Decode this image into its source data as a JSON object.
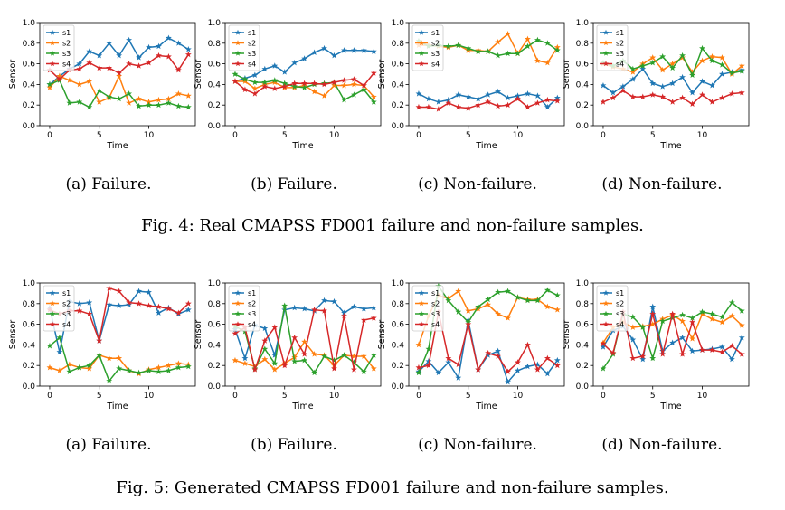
{
  "colors": {
    "s1": "#1f77b4",
    "s2": "#ff7f0e",
    "s3": "#2ca02c",
    "s4": "#d62728"
  },
  "figures": [
    {
      "caption": "Fig. 4: Real CMAPSS FD001 failure and non-failure samples."
    },
    {
      "caption": "Fig. 5: Generated CMAPSS FD001 failure and non-failure samples."
    }
  ],
  "chart_data": [
    {
      "type": "line",
      "figure": 0,
      "panel": 0,
      "caption": "(a) Failure.",
      "xlabel": "Time",
      "ylabel": "Sensor",
      "xlim": [
        -1,
        14.7
      ],
      "ylim": [
        0,
        1.0
      ],
      "xticks": [
        0,
        5,
        10
      ],
      "yticks": [
        0.0,
        0.2,
        0.4,
        0.6,
        0.8,
        1.0
      ],
      "legend": "upper-left",
      "series": [
        {
          "name": "s1",
          "values": [
            0.4,
            0.48,
            0.55,
            0.6,
            0.72,
            0.68,
            0.8,
            0.68,
            0.83,
            0.66,
            0.76,
            0.77,
            0.85,
            0.8,
            0.74
          ]
        },
        {
          "name": "s2",
          "values": [
            0.37,
            0.48,
            0.44,
            0.4,
            0.43,
            0.23,
            0.27,
            0.48,
            0.22,
            0.26,
            0.23,
            0.25,
            0.26,
            0.31,
            0.29
          ]
        },
        {
          "name": "s3",
          "values": [
            0.4,
            0.44,
            0.22,
            0.23,
            0.18,
            0.34,
            0.28,
            0.26,
            0.31,
            0.19,
            0.2,
            0.2,
            0.22,
            0.19,
            0.18
          ]
        },
        {
          "name": "s4",
          "values": [
            0.54,
            0.45,
            0.54,
            0.55,
            0.61,
            0.56,
            0.56,
            0.51,
            0.6,
            0.58,
            0.61,
            0.68,
            0.67,
            0.54,
            0.69
          ]
        }
      ]
    },
    {
      "type": "line",
      "figure": 0,
      "panel": 1,
      "caption": "(b) Failure.",
      "xlabel": "Time",
      "ylabel": "Sensor",
      "xlim": [
        -1,
        14.7
      ],
      "ylim": [
        0,
        1.0
      ],
      "xticks": [
        0,
        5,
        10
      ],
      "yticks": [
        0.0,
        0.2,
        0.4,
        0.6,
        0.8,
        1.0
      ],
      "legend": "upper-left",
      "series": [
        {
          "name": "s1",
          "values": [
            0.43,
            0.46,
            0.49,
            0.55,
            0.58,
            0.52,
            0.61,
            0.65,
            0.71,
            0.75,
            0.68,
            0.73,
            0.73,
            0.73,
            0.72
          ]
        },
        {
          "name": "s2",
          "values": [
            0.43,
            0.43,
            0.36,
            0.4,
            0.42,
            0.37,
            0.37,
            0.39,
            0.33,
            0.29,
            0.39,
            0.39,
            0.4,
            0.39,
            0.28
          ]
        },
        {
          "name": "s3",
          "values": [
            0.5,
            0.45,
            0.42,
            0.42,
            0.44,
            0.41,
            0.38,
            0.37,
            0.4,
            0.41,
            0.42,
            0.25,
            0.3,
            0.35,
            0.23
          ]
        },
        {
          "name": "s4",
          "values": [
            0.43,
            0.35,
            0.31,
            0.38,
            0.36,
            0.38,
            0.41,
            0.41,
            0.41,
            0.4,
            0.42,
            0.44,
            0.45,
            0.39,
            0.51
          ]
        }
      ]
    },
    {
      "type": "line",
      "figure": 0,
      "panel": 2,
      "caption": "(c) Non-failure.",
      "xlabel": "Time",
      "ylabel": "Sensor",
      "xlim": [
        -1,
        14.7
      ],
      "ylim": [
        0,
        1.0
      ],
      "xticks": [
        0,
        5,
        10
      ],
      "yticks": [
        0.0,
        0.2,
        0.4,
        0.6,
        0.8,
        1.0
      ],
      "legend": "upper-left",
      "series": [
        {
          "name": "s1",
          "values": [
            0.31,
            0.26,
            0.23,
            0.25,
            0.3,
            0.28,
            0.26,
            0.3,
            0.33,
            0.27,
            0.29,
            0.31,
            0.29,
            0.18,
            0.27
          ]
        },
        {
          "name": "s2",
          "values": [
            0.78,
            0.78,
            0.77,
            0.76,
            0.78,
            0.73,
            0.73,
            0.72,
            0.81,
            0.89,
            0.7,
            0.84,
            0.63,
            0.61,
            0.76
          ]
        },
        {
          "name": "s3",
          "values": [
            0.82,
            0.77,
            0.78,
            0.77,
            0.78,
            0.75,
            0.72,
            0.72,
            0.68,
            0.7,
            0.7,
            0.77,
            0.83,
            0.8,
            0.73
          ]
        },
        {
          "name": "s4",
          "values": [
            0.18,
            0.18,
            0.16,
            0.22,
            0.18,
            0.17,
            0.2,
            0.23,
            0.19,
            0.2,
            0.26,
            0.18,
            0.22,
            0.25,
            0.24
          ]
        }
      ]
    },
    {
      "type": "line",
      "figure": 0,
      "panel": 3,
      "caption": "(d) Non-failure.",
      "xlabel": "Time",
      "ylabel": "Sensor",
      "xlim": [
        -1,
        14.7
      ],
      "ylim": [
        0,
        1.0
      ],
      "xticks": [
        0,
        5,
        10
      ],
      "yticks": [
        0.0,
        0.2,
        0.4,
        0.6,
        0.8,
        1.0
      ],
      "legend": "upper-left",
      "series": [
        {
          "name": "s1",
          "values": [
            0.39,
            0.32,
            0.38,
            0.45,
            0.55,
            0.41,
            0.38,
            0.41,
            0.47,
            0.32,
            0.43,
            0.39,
            0.5,
            0.52,
            0.54
          ]
        },
        {
          "name": "s2",
          "values": [
            0.6,
            0.57,
            0.55,
            0.52,
            0.6,
            0.66,
            0.54,
            0.6,
            0.66,
            0.52,
            0.63,
            0.67,
            0.66,
            0.5,
            0.58
          ]
        },
        {
          "name": "s3",
          "values": [
            0.61,
            0.58,
            0.63,
            0.55,
            0.58,
            0.61,
            0.67,
            0.56,
            0.68,
            0.49,
            0.75,
            0.63,
            0.59,
            0.51,
            0.53
          ]
        },
        {
          "name": "s4",
          "values": [
            0.23,
            0.27,
            0.34,
            0.28,
            0.28,
            0.3,
            0.28,
            0.23,
            0.27,
            0.21,
            0.3,
            0.23,
            0.27,
            0.31,
            0.32
          ]
        }
      ]
    },
    {
      "type": "line",
      "figure": 1,
      "panel": 0,
      "caption": "(a) Failure.",
      "xlabel": "Time",
      "ylabel": "Sensor",
      "xlim": [
        -1,
        14.7
      ],
      "ylim": [
        0,
        1.0
      ],
      "xticks": [
        0,
        5,
        10
      ],
      "yticks": [
        0.0,
        0.2,
        0.4,
        0.6,
        0.8,
        1.0
      ],
      "legend": "upper-left",
      "series": [
        {
          "name": "s1",
          "values": [
            0.76,
            0.33,
            0.82,
            0.8,
            0.81,
            0.44,
            0.79,
            0.78,
            0.79,
            0.92,
            0.91,
            0.71,
            0.76,
            0.7,
            0.74
          ]
        },
        {
          "name": "s2",
          "values": [
            0.18,
            0.15,
            0.21,
            0.18,
            0.17,
            0.3,
            0.27,
            0.27,
            0.15,
            0.12,
            0.16,
            0.18,
            0.2,
            0.22,
            0.21
          ]
        },
        {
          "name": "s3",
          "values": [
            0.39,
            0.47,
            0.14,
            0.18,
            0.2,
            0.3,
            0.05,
            0.17,
            0.15,
            0.13,
            0.15,
            0.14,
            0.15,
            0.18,
            0.19
          ]
        },
        {
          "name": "s4",
          "values": [
            0.74,
            0.7,
            0.73,
            0.73,
            0.7,
            0.44,
            0.95,
            0.92,
            0.81,
            0.8,
            0.78,
            0.77,
            0.75,
            0.71,
            0.8
          ]
        }
      ]
    },
    {
      "type": "line",
      "figure": 1,
      "panel": 1,
      "caption": "(b) Failure.",
      "xlabel": "Time",
      "ylabel": "Sensor",
      "xlim": [
        -1,
        14.7
      ],
      "ylim": [
        0,
        1.0
      ],
      "xticks": [
        0,
        5,
        10
      ],
      "yticks": [
        0.0,
        0.2,
        0.4,
        0.6,
        0.8,
        1.0
      ],
      "legend": "upper-left",
      "series": [
        {
          "name": "s1",
          "values": [
            0.55,
            0.27,
            0.59,
            0.56,
            0.3,
            0.74,
            0.76,
            0.75,
            0.73,
            0.83,
            0.82,
            0.71,
            0.77,
            0.75,
            0.76
          ]
        },
        {
          "name": "s2",
          "values": [
            0.25,
            0.22,
            0.19,
            0.26,
            0.16,
            0.22,
            0.28,
            0.43,
            0.31,
            0.3,
            0.2,
            0.3,
            0.29,
            0.29,
            0.17
          ]
        },
        {
          "name": "s3",
          "values": [
            0.58,
            0.53,
            0.17,
            0.36,
            0.22,
            0.78,
            0.24,
            0.25,
            0.13,
            0.29,
            0.25,
            0.3,
            0.23,
            0.14,
            0.3
          ]
        },
        {
          "name": "s4",
          "values": [
            0.51,
            0.57,
            0.16,
            0.44,
            0.57,
            0.2,
            0.47,
            0.31,
            0.74,
            0.73,
            0.17,
            0.68,
            0.16,
            0.64,
            0.66
          ]
        }
      ]
    },
    {
      "type": "line",
      "figure": 1,
      "panel": 2,
      "caption": "(c) Non-failure.",
      "xlabel": "Time",
      "ylabel": "Sensor",
      "xlim": [
        -1,
        14.7
      ],
      "ylim": [
        0,
        1.0
      ],
      "xticks": [
        0,
        5,
        10
      ],
      "yticks": [
        0.0,
        0.2,
        0.4,
        0.6,
        0.8,
        1.0
      ],
      "legend": "upper-left",
      "series": [
        {
          "name": "s1",
          "values": [
            0.14,
            0.24,
            0.13,
            0.23,
            0.08,
            0.64,
            0.16,
            0.3,
            0.34,
            0.04,
            0.15,
            0.19,
            0.21,
            0.12,
            0.25
          ]
        },
        {
          "name": "s2",
          "values": [
            0.4,
            0.68,
            0.88,
            0.85,
            0.92,
            0.73,
            0.75,
            0.79,
            0.7,
            0.66,
            0.86,
            0.84,
            0.84,
            0.77,
            0.74
          ]
        },
        {
          "name": "s3",
          "values": [
            0.13,
            0.36,
            0.97,
            0.83,
            0.72,
            0.62,
            0.77,
            0.84,
            0.91,
            0.92,
            0.86,
            0.83,
            0.83,
            0.93,
            0.88
          ]
        },
        {
          "name": "s4",
          "values": [
            0.18,
            0.2,
            0.72,
            0.27,
            0.21,
            0.6,
            0.16,
            0.32,
            0.29,
            0.14,
            0.23,
            0.4,
            0.16,
            0.27,
            0.2
          ]
        }
      ]
    },
    {
      "type": "line",
      "figure": 1,
      "panel": 3,
      "caption": "(d) Non-failure.",
      "xlabel": "Time",
      "ylabel": "Sensor",
      "xlim": [
        -1,
        14.7
      ],
      "ylim": [
        0,
        1.0
      ],
      "xticks": [
        0,
        5,
        10
      ],
      "yticks": [
        0.0,
        0.2,
        0.4,
        0.6,
        0.8,
        1.0
      ],
      "legend": "upper-left",
      "series": [
        {
          "name": "s1",
          "values": [
            0.38,
            0.54,
            0.58,
            0.45,
            0.26,
            0.77,
            0.34,
            0.42,
            0.47,
            0.34,
            0.35,
            0.36,
            0.38,
            0.26,
            0.47
          ]
        },
        {
          "name": "s2",
          "values": [
            0.42,
            0.57,
            0.62,
            0.57,
            0.58,
            0.6,
            0.65,
            0.69,
            0.63,
            0.46,
            0.7,
            0.65,
            0.62,
            0.68,
            0.59
          ]
        },
        {
          "name": "s3",
          "values": [
            0.17,
            0.31,
            0.7,
            0.67,
            0.57,
            0.27,
            0.63,
            0.66,
            0.69,
            0.66,
            0.72,
            0.7,
            0.67,
            0.81,
            0.73
          ]
        },
        {
          "name": "s4",
          "values": [
            0.41,
            0.32,
            0.72,
            0.27,
            0.29,
            0.7,
            0.31,
            0.7,
            0.31,
            0.62,
            0.35,
            0.35,
            0.33,
            0.39,
            0.31
          ]
        }
      ]
    }
  ]
}
